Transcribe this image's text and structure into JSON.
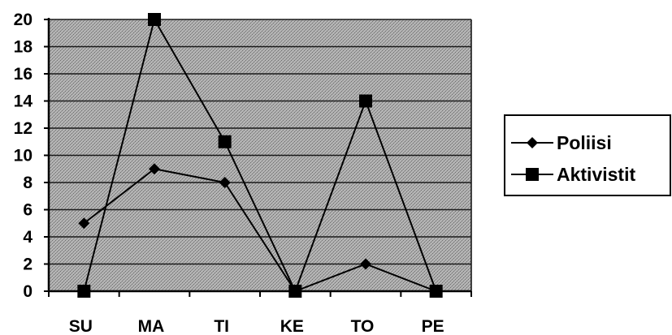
{
  "chart_data": {
    "type": "line",
    "title": "",
    "xlabel": "",
    "ylabel": "",
    "categories": [
      "SU",
      "MA",
      "TI",
      "KE",
      "TO",
      "PE"
    ],
    "ylim": [
      0,
      20
    ],
    "yticks": [
      0,
      2,
      4,
      6,
      8,
      10,
      12,
      14,
      16,
      18,
      20
    ],
    "grid": true,
    "legend_position": "right",
    "plot_background": "#a6a6a6",
    "series": [
      {
        "name": "Poliisi",
        "marker": "diamond",
        "color": "#000000",
        "values": [
          5,
          9,
          8,
          0,
          2,
          0
        ]
      },
      {
        "name": "Aktivistit",
        "marker": "square",
        "color": "#000000",
        "values": [
          0,
          20,
          11,
          0,
          14,
          0
        ]
      }
    ]
  }
}
